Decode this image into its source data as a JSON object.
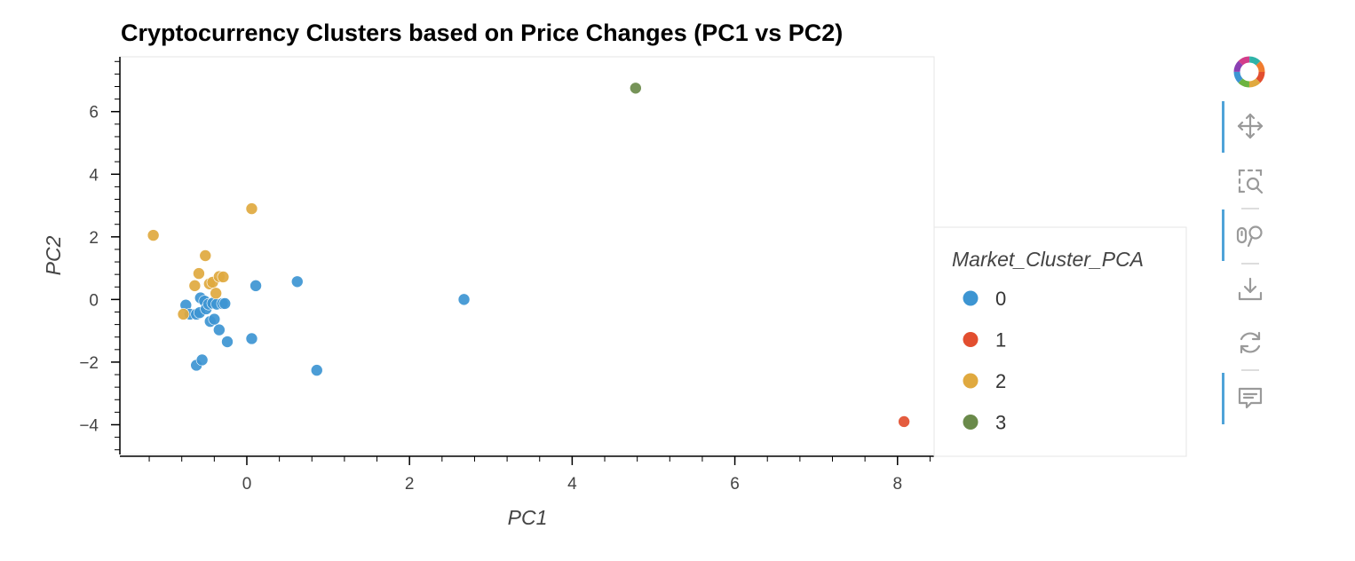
{
  "chart_data": {
    "type": "scatter",
    "title": "Cryptocurrency Clusters based on Price Changes (PC1 vs PC2)",
    "xlabel": "PC1",
    "ylabel": "PC2",
    "xlim": [
      -1.55,
      8.45
    ],
    "ylim": [
      -4.95,
      7.75
    ],
    "x_ticks": [
      0,
      2,
      4,
      6,
      8
    ],
    "x_tick_labels": [
      "0",
      "2",
      "4",
      "6",
      "8"
    ],
    "y_ticks": [
      -4,
      -2,
      0,
      2,
      4,
      6
    ],
    "y_tick_labels": [
      "−4",
      "−2",
      "0",
      "2",
      "4",
      "6"
    ],
    "grid": false,
    "legend_placement": "right",
    "legend_title": "Market_Cluster_PCA",
    "series": [
      {
        "name": "0",
        "color": "#3d95d2",
        "points": [
          [
            -0.75,
            -0.18
          ],
          [
            -0.7,
            -0.47
          ],
          [
            -0.62,
            -0.47
          ],
          [
            -0.58,
            -0.42
          ],
          [
            -0.57,
            0.05
          ],
          [
            -0.52,
            -0.05
          ],
          [
            -0.5,
            -0.3
          ],
          [
            -0.47,
            -0.15
          ],
          [
            -0.45,
            -0.7
          ],
          [
            -0.42,
            -0.12
          ],
          [
            -0.4,
            -0.63
          ],
          [
            -0.37,
            -0.15
          ],
          [
            -0.34,
            -0.97
          ],
          [
            -0.3,
            -0.13
          ],
          [
            -0.27,
            -0.13
          ],
          [
            -0.24,
            -1.35
          ],
          [
            -0.62,
            -2.1
          ],
          [
            -0.55,
            -1.93
          ],
          [
            0.06,
            -1.25
          ],
          [
            0.11,
            0.44
          ],
          [
            0.62,
            0.57
          ],
          [
            0.86,
            -2.26
          ],
          [
            2.67,
            0.0
          ]
        ]
      },
      {
        "name": "1",
        "color": "#e24e2f",
        "points": [
          [
            8.08,
            -3.9
          ]
        ]
      },
      {
        "name": "2",
        "color": "#e0a93f",
        "points": [
          [
            -1.15,
            2.05
          ],
          [
            -0.78,
            -0.47
          ],
          [
            -0.64,
            0.44
          ],
          [
            -0.59,
            0.83
          ],
          [
            -0.51,
            1.4
          ],
          [
            -0.46,
            0.5
          ],
          [
            -0.42,
            0.55
          ],
          [
            -0.38,
            0.2
          ],
          [
            -0.34,
            0.73
          ],
          [
            -0.29,
            0.72
          ],
          [
            0.06,
            2.9
          ]
        ]
      },
      {
        "name": "3",
        "color": "#6a8a4a",
        "points": [
          [
            4.78,
            6.75
          ]
        ]
      }
    ]
  },
  "toolbar": {
    "tools": [
      "bokeh-logo-icon",
      "pan-icon",
      "box-zoom-icon",
      "wheel-zoom-icon",
      "save-icon",
      "reset-icon",
      "hover-icon"
    ]
  }
}
